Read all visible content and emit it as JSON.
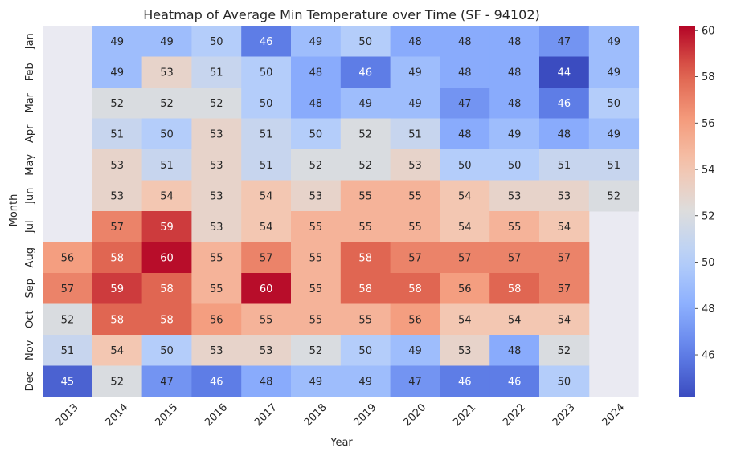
{
  "chart_data": {
    "type": "heatmap",
    "title": "Heatmap of Average Min Temperature over Time (SF - 94102)",
    "xlabel": "Year",
    "ylabel": "Month",
    "x_categories": [
      "2013",
      "2014",
      "2015",
      "2016",
      "2017",
      "2018",
      "2019",
      "2020",
      "2021",
      "2022",
      "2023",
      "2024"
    ],
    "y_categories": [
      "Jan",
      "Feb",
      "Mar",
      "Apr",
      "May",
      "Jun",
      "Jul",
      "Aug",
      "Sep",
      "Oct",
      "Nov",
      "Dec"
    ],
    "values": [
      [
        null,
        49,
        49,
        50,
        46,
        49,
        50,
        48,
        48,
        48,
        47,
        49
      ],
      [
        null,
        49,
        53,
        51,
        50,
        48,
        46,
        49,
        48,
        48,
        44,
        49
      ],
      [
        null,
        52,
        52,
        52,
        50,
        48,
        49,
        49,
        47,
        48,
        46,
        50
      ],
      [
        null,
        51,
        50,
        53,
        51,
        50,
        52,
        51,
        48,
        49,
        48,
        49
      ],
      [
        null,
        53,
        51,
        53,
        51,
        52,
        52,
        53,
        50,
        50,
        51,
        51
      ],
      [
        null,
        53,
        54,
        53,
        54,
        53,
        55,
        55,
        54,
        53,
        53,
        52
      ],
      [
        null,
        57,
        59,
        53,
        54,
        55,
        55,
        55,
        54,
        55,
        54,
        null
      ],
      [
        56,
        58,
        60,
        55,
        57,
        55,
        58,
        57,
        57,
        57,
        57,
        null
      ],
      [
        57,
        59,
        58,
        55,
        60,
        55,
        58,
        58,
        56,
        58,
        57,
        null
      ],
      [
        52,
        58,
        58,
        56,
        55,
        55,
        55,
        56,
        54,
        54,
        54,
        null
      ],
      [
        51,
        54,
        50,
        53,
        53,
        52,
        50,
        49,
        53,
        48,
        52,
        null
      ],
      [
        45,
        52,
        47,
        46,
        48,
        49,
        49,
        47,
        46,
        46,
        50,
        null
      ]
    ],
    "colormap": "coolwarm",
    "colorbar": {
      "range": [
        44.2,
        60.2
      ],
      "ticks": [
        46,
        48,
        50,
        52,
        54,
        56,
        58,
        60
      ]
    },
    "missing_color": "#eaeaf2",
    "grid": false,
    "annotated": true
  }
}
